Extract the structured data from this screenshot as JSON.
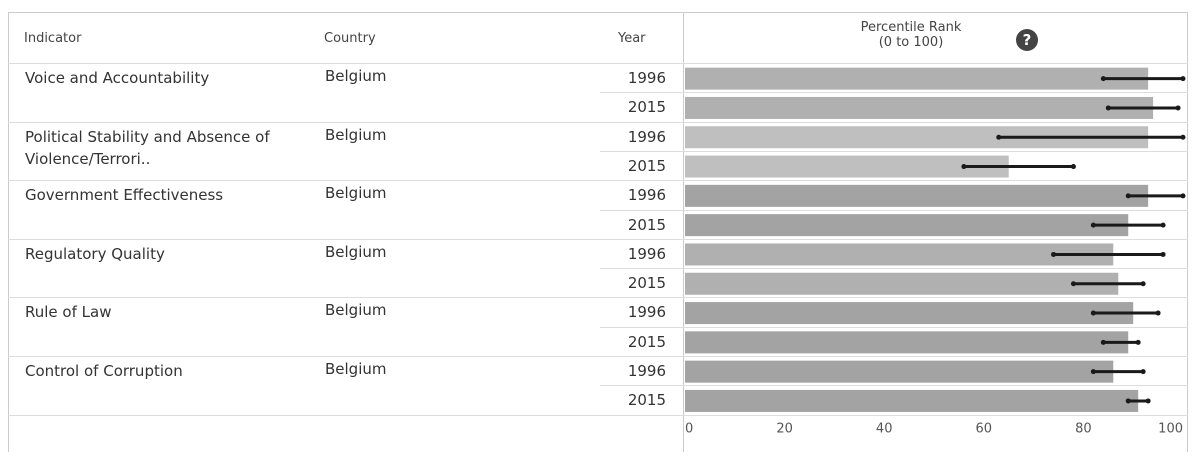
{
  "header": {
    "indicator": "Indicator",
    "country": "Country",
    "year": "Year",
    "percentile_line1": "Percentile Rank",
    "percentile_line2": "(0 to 100)",
    "help_glyph": "?"
  },
  "rows": [
    {
      "indicator": "Voice and Accountability",
      "country": "Belgium",
      "years": [
        "1996",
        "2015"
      ]
    },
    {
      "indicator": "Political Stability and Absence of Violence/Terrori..",
      "country": "Belgium",
      "years": [
        "1996",
        "2015"
      ]
    },
    {
      "indicator": "Government Effectiveness",
      "country": "Belgium",
      "years": [
        "1996",
        "2015"
      ]
    },
    {
      "indicator": "Regulatory Quality",
      "country": "Belgium",
      "years": [
        "1996",
        "2015"
      ]
    },
    {
      "indicator": "Rule of Law",
      "country": "Belgium",
      "years": [
        "1996",
        "2015"
      ]
    },
    {
      "indicator": "Control of Corruption",
      "country": "Belgium",
      "years": [
        "1996",
        "2015"
      ]
    }
  ],
  "chart_data": {
    "type": "bar",
    "orientation": "horizontal",
    "xlim": [
      0,
      100
    ],
    "xticks": [
      "0",
      "20",
      "40",
      "60",
      "80",
      "100"
    ],
    "colors": {
      "light": "#bfbfbf",
      "mid": "#b0b0b0",
      "dark": "#a3a3a3",
      "whisker": "#1a1a1a"
    },
    "bars": [
      {
        "indicator": "Voice and Accountability",
        "year": "1996",
        "value": 93,
        "low": 84,
        "high": 100,
        "shade": "mid"
      },
      {
        "indicator": "Voice and Accountability",
        "year": "2015",
        "value": 94,
        "low": 85,
        "high": 99,
        "shade": "mid"
      },
      {
        "indicator": "Political Stability and Absence of Violence/Terrori..",
        "year": "1996",
        "value": 93,
        "low": 63,
        "high": 100,
        "shade": "light"
      },
      {
        "indicator": "Political Stability and Absence of Violence/Terrori..",
        "year": "2015",
        "value": 65,
        "low": 56,
        "high": 78,
        "shade": "light"
      },
      {
        "indicator": "Government Effectiveness",
        "year": "1996",
        "value": 93,
        "low": 89,
        "high": 100,
        "shade": "dark"
      },
      {
        "indicator": "Government Effectiveness",
        "year": "2015",
        "value": 89,
        "low": 82,
        "high": 96,
        "shade": "dark"
      },
      {
        "indicator": "Regulatory Quality",
        "year": "1996",
        "value": 86,
        "low": 74,
        "high": 96,
        "shade": "mid"
      },
      {
        "indicator": "Regulatory Quality",
        "year": "2015",
        "value": 87,
        "low": 78,
        "high": 92,
        "shade": "mid"
      },
      {
        "indicator": "Rule of Law",
        "year": "1996",
        "value": 90,
        "low": 82,
        "high": 95,
        "shade": "dark"
      },
      {
        "indicator": "Rule of Law",
        "year": "2015",
        "value": 89,
        "low": 84,
        "high": 91,
        "shade": "dark"
      },
      {
        "indicator": "Control of Corruption",
        "year": "1996",
        "value": 86,
        "low": 82,
        "high": 92,
        "shade": "dark"
      },
      {
        "indicator": "Control of Corruption",
        "year": "2015",
        "value": 91,
        "low": 89,
        "high": 93,
        "shade": "dark"
      }
    ]
  }
}
